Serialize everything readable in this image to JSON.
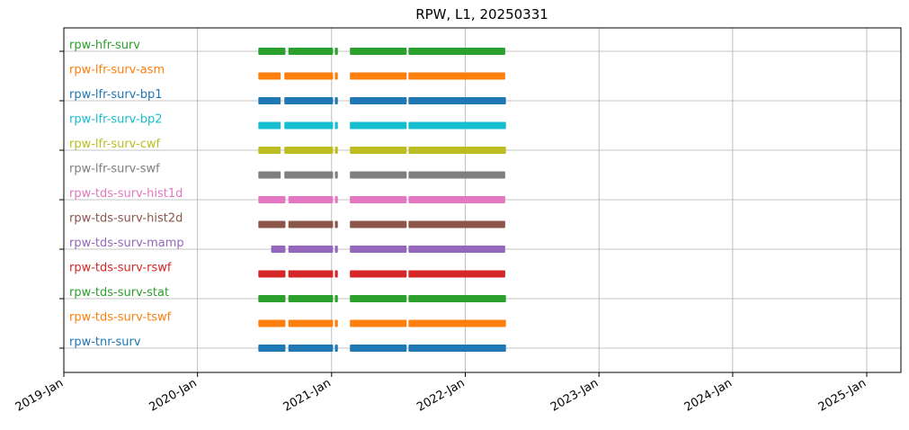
{
  "chart_data": {
    "type": "timeline",
    "title": "RPW, L1, 20250331",
    "xlabel": "",
    "ylabel": "",
    "x_ticks": [
      "2019-Jan",
      "2020-Jan",
      "2021-Jan",
      "2022-Jan",
      "2023-Jan",
      "2024-Jan",
      "2025-Jan"
    ],
    "xlim": [
      "2019-01-01",
      "2025-04-01"
    ],
    "grid": true,
    "series": [
      {
        "name": "rpw-hfr-surv",
        "color": "#2ca02c",
        "segments": [
          [
            "2020-06-15",
            "2020-08-28"
          ],
          [
            "2020-09-05",
            "2021-01-05"
          ],
          [
            "2021-01-10",
            "2021-01-18"
          ],
          [
            "2021-02-20",
            "2021-07-25"
          ],
          [
            "2021-07-30",
            "2022-04-20"
          ]
        ]
      },
      {
        "name": "rpw-lfr-surv-asm",
        "color": "#ff7f0e",
        "segments": [
          [
            "2020-06-15",
            "2020-08-15"
          ],
          [
            "2020-08-25",
            "2021-01-05"
          ],
          [
            "2021-01-10",
            "2021-01-18"
          ],
          [
            "2021-02-20",
            "2021-07-25"
          ],
          [
            "2021-07-30",
            "2022-04-20"
          ]
        ]
      },
      {
        "name": "rpw-lfr-surv-bp1",
        "color": "#1f77b4",
        "segments": [
          [
            "2020-06-15",
            "2020-08-15"
          ],
          [
            "2020-08-25",
            "2021-01-05"
          ],
          [
            "2021-01-10",
            "2021-01-18"
          ],
          [
            "2021-02-20",
            "2021-07-25"
          ],
          [
            "2021-07-30",
            "2022-04-22"
          ]
        ]
      },
      {
        "name": "rpw-lfr-surv-bp2",
        "color": "#17becf",
        "segments": [
          [
            "2020-06-15",
            "2020-08-15"
          ],
          [
            "2020-08-25",
            "2021-01-05"
          ],
          [
            "2021-01-10",
            "2021-01-18"
          ],
          [
            "2021-02-20",
            "2021-07-25"
          ],
          [
            "2021-07-30",
            "2022-04-22"
          ]
        ]
      },
      {
        "name": "rpw-lfr-surv-cwf",
        "color": "#bcbd22",
        "segments": [
          [
            "2020-06-15",
            "2020-08-15"
          ],
          [
            "2020-08-25",
            "2021-01-05"
          ],
          [
            "2021-01-10",
            "2021-01-18"
          ],
          [
            "2021-02-20",
            "2021-07-25"
          ],
          [
            "2021-07-30",
            "2022-04-22"
          ]
        ]
      },
      {
        "name": "rpw-lfr-surv-swf",
        "color": "#7f7f7f",
        "segments": [
          [
            "2020-06-15",
            "2020-08-15"
          ],
          [
            "2020-08-25",
            "2021-01-05"
          ],
          [
            "2021-01-10",
            "2021-01-18"
          ],
          [
            "2021-02-20",
            "2021-07-25"
          ],
          [
            "2021-07-30",
            "2022-04-20"
          ]
        ]
      },
      {
        "name": "rpw-tds-surv-hist1d",
        "color": "#e377c2",
        "segments": [
          [
            "2020-06-15",
            "2020-08-28"
          ],
          [
            "2020-09-05",
            "2021-01-05"
          ],
          [
            "2021-01-10",
            "2021-01-18"
          ],
          [
            "2021-02-20",
            "2021-07-25"
          ],
          [
            "2021-07-30",
            "2022-04-20"
          ]
        ]
      },
      {
        "name": "rpw-tds-surv-hist2d",
        "color": "#8c564b",
        "segments": [
          [
            "2020-06-15",
            "2020-08-28"
          ],
          [
            "2020-09-05",
            "2021-01-05"
          ],
          [
            "2021-01-10",
            "2021-01-18"
          ],
          [
            "2021-02-20",
            "2021-07-25"
          ],
          [
            "2021-07-30",
            "2022-04-20"
          ]
        ]
      },
      {
        "name": "rpw-tds-surv-mamp",
        "color": "#9467bd",
        "segments": [
          [
            "2020-07-20",
            "2020-08-28"
          ],
          [
            "2020-09-05",
            "2021-01-05"
          ],
          [
            "2021-01-10",
            "2021-01-18"
          ],
          [
            "2021-02-20",
            "2021-07-25"
          ],
          [
            "2021-07-30",
            "2022-04-20"
          ]
        ]
      },
      {
        "name": "rpw-tds-surv-rswf",
        "color": "#d62728",
        "segments": [
          [
            "2020-06-15",
            "2020-08-28"
          ],
          [
            "2020-09-05",
            "2021-01-05"
          ],
          [
            "2021-01-10",
            "2021-01-18"
          ],
          [
            "2021-02-20",
            "2021-07-25"
          ],
          [
            "2021-07-30",
            "2022-04-20"
          ]
        ]
      },
      {
        "name": "rpw-tds-surv-stat",
        "color": "#2ca02c",
        "segments": [
          [
            "2020-06-15",
            "2020-08-28"
          ],
          [
            "2020-09-05",
            "2021-01-05"
          ],
          [
            "2021-01-10",
            "2021-01-18"
          ],
          [
            "2021-02-20",
            "2021-07-25"
          ],
          [
            "2021-07-30",
            "2022-04-22"
          ]
        ]
      },
      {
        "name": "rpw-tds-surv-tswf",
        "color": "#ff7f0e",
        "segments": [
          [
            "2020-06-15",
            "2020-08-28"
          ],
          [
            "2020-09-05",
            "2021-01-05"
          ],
          [
            "2021-01-10",
            "2021-01-18"
          ],
          [
            "2021-02-20",
            "2021-07-25"
          ],
          [
            "2021-07-30",
            "2022-04-22"
          ]
        ]
      },
      {
        "name": "rpw-tnr-surv",
        "color": "#1f77b4",
        "segments": [
          [
            "2020-06-15",
            "2020-08-28"
          ],
          [
            "2020-09-05",
            "2021-01-05"
          ],
          [
            "2021-01-10",
            "2021-01-18"
          ],
          [
            "2021-02-20",
            "2021-07-25"
          ],
          [
            "2021-07-30",
            "2022-04-22"
          ]
        ]
      }
    ]
  }
}
